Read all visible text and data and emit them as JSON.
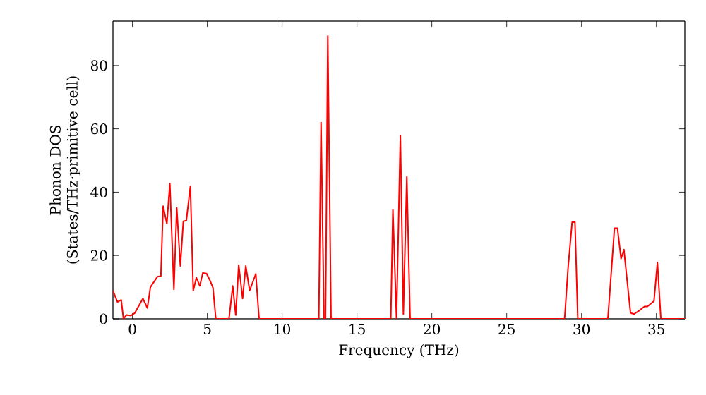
{
  "chart_data": {
    "type": "line",
    "xlabel": "Frequency (THz)",
    "ylabel": "Phonon DOS (States/THz·primitive cell)",
    "xlim": [
      -1.3,
      36.9
    ],
    "ylim": [
      0,
      94
    ],
    "xticks": [
      0,
      5,
      10,
      15,
      20,
      25,
      30,
      35
    ],
    "yticks": [
      0,
      20,
      40,
      60,
      80
    ],
    "marker": "none",
    "line_style": "solid",
    "series": [
      {
        "color": "#ff0000",
        "x": [
          -1.3,
          -1.0,
          -0.75,
          -0.6,
          -0.4,
          -0.1,
          0.15,
          0.7,
          1.0,
          1.2,
          1.67,
          1.9,
          2.05,
          2.3,
          2.5,
          2.77,
          2.96,
          3.2,
          3.4,
          3.6,
          3.87,
          4.06,
          4.27,
          4.5,
          4.7,
          4.95,
          5.2,
          5.38,
          5.57,
          6.45,
          6.7,
          6.9,
          7.1,
          7.36,
          7.57,
          7.83,
          8.24,
          8.46,
          12.45,
          12.6,
          12.8,
          12.9,
          13.05,
          13.27,
          17.26,
          17.4,
          17.64,
          17.9,
          18.1,
          18.33,
          18.55,
          28.87,
          29.1,
          29.37,
          29.56,
          29.75,
          31.76,
          32.2,
          32.4,
          32.64,
          32.83,
          33.27,
          33.5,
          33.8,
          34.2,
          34.4,
          34.84,
          35.07,
          35.3,
          36.9
        ],
        "values": [
          8.9,
          5.3,
          6,
          0,
          1.2,
          1,
          1.8,
          6.4,
          3.4,
          10,
          13.3,
          13.5,
          35.6,
          30,
          42.7,
          9.3,
          35,
          16.7,
          30.8,
          31,
          41.8,
          8.9,
          13,
          10.4,
          14.5,
          14.3,
          11.9,
          9.8,
          0,
          0,
          10.4,
          1.2,
          17,
          6.4,
          16.7,
          8.9,
          14.2,
          0,
          0,
          62,
          0,
          0,
          89.3,
          0,
          0,
          34.5,
          0,
          57.8,
          1.5,
          44.9,
          0,
          0,
          16,
          30.5,
          30.5,
          0,
          0,
          28.6,
          28.6,
          19,
          21.9,
          1.9,
          1.5,
          2.4,
          3.9,
          3.9,
          5.6,
          17.8,
          0,
          0
        ]
      }
    ]
  }
}
